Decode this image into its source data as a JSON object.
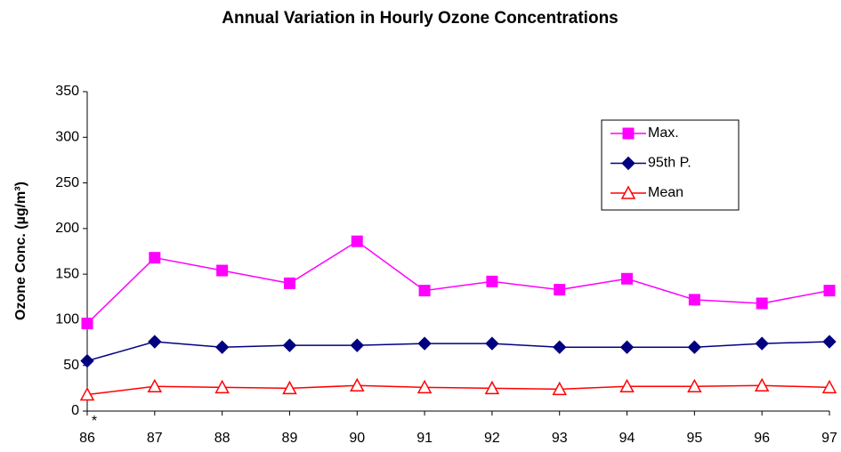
{
  "chart_data": {
    "type": "line",
    "title": "Annual Variation in Hourly Ozone Concentrations",
    "y_label": "Ozone Conc. (µg/m³)",
    "annotation": "*",
    "categories": [
      "86",
      "87",
      "88",
      "89",
      "90",
      "91",
      "92",
      "93",
      "94",
      "95",
      "96",
      "97"
    ],
    "series": [
      {
        "name": "Max.",
        "color": "#ff00ff",
        "marker": "square",
        "values": [
          96,
          168,
          154,
          140,
          186,
          132,
          142,
          133,
          145,
          122,
          118,
          132
        ]
      },
      {
        "name": "95th P.",
        "color": "#000080",
        "marker": "diamond",
        "values": [
          55,
          76,
          70,
          72,
          72,
          74,
          74,
          70,
          70,
          70,
          74,
          76
        ]
      },
      {
        "name": "Mean",
        "color": "#ff0000",
        "marker": "triangle",
        "values": [
          18,
          27,
          26,
          25,
          28,
          26,
          25,
          24,
          27,
          27,
          28,
          26
        ]
      }
    ],
    "ylim": [
      0,
      350
    ],
    "yticks": [
      0,
      50,
      100,
      150,
      200,
      250,
      300,
      350
    ],
    "grid": false,
    "legend": "upper right"
  }
}
